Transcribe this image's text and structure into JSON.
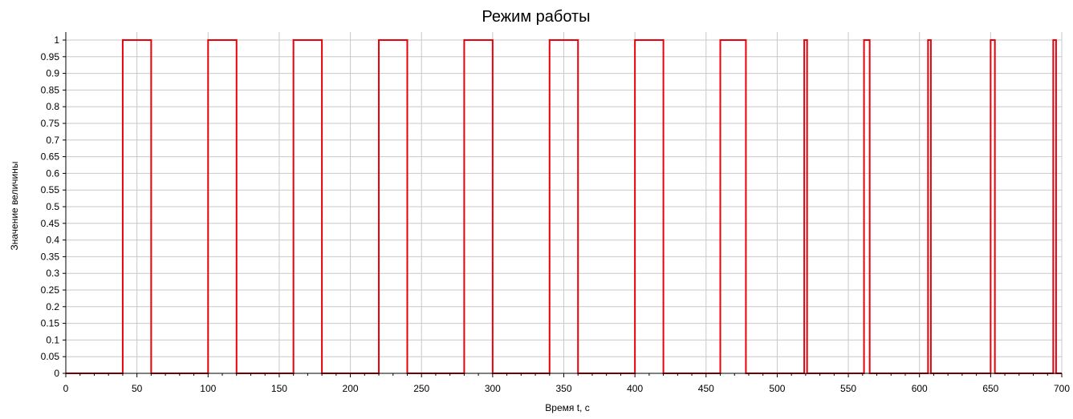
{
  "colors": {
    "series": "#e8000b",
    "grid": "#c8c8c8",
    "axis": "#000000",
    "background": "#ffffff"
  },
  "chart_data": {
    "type": "line",
    "title": "Режим работы",
    "xlabel": "Время t, с",
    "ylabel": "Значение величины",
    "xlim": [
      0,
      700
    ],
    "ylim": [
      0,
      1
    ],
    "grid": true,
    "x_ticks": [
      "0",
      "50",
      "100",
      "150",
      "200",
      "250",
      "300",
      "350",
      "400",
      "450",
      "500",
      "550",
      "600",
      "650",
      "700"
    ],
    "y_ticks": [
      "0",
      "0.05",
      "0.1",
      "0.15",
      "0.2",
      "0.25",
      "0.3",
      "0.35",
      "0.4",
      "0.45",
      "0.5",
      "0.55",
      "0.6",
      "0.65",
      "0.7",
      "0.75",
      "0.8",
      "0.85",
      "0.9",
      "0.95",
      "1"
    ],
    "series": [
      {
        "step": true,
        "x": [
          0,
          40,
          60,
          100,
          120,
          160,
          180,
          220,
          240,
          280,
          300,
          340,
          360,
          400,
          420,
          460,
          478,
          519,
          521,
          561,
          565,
          606,
          608,
          650,
          653,
          694,
          696,
          700
        ],
        "y": [
          0,
          1,
          0,
          1,
          0,
          1,
          0,
          1,
          0,
          1,
          0,
          1,
          0,
          1,
          0,
          1,
          0,
          1,
          0,
          1,
          0,
          1,
          0,
          1,
          0,
          1,
          0,
          0
        ]
      }
    ]
  }
}
